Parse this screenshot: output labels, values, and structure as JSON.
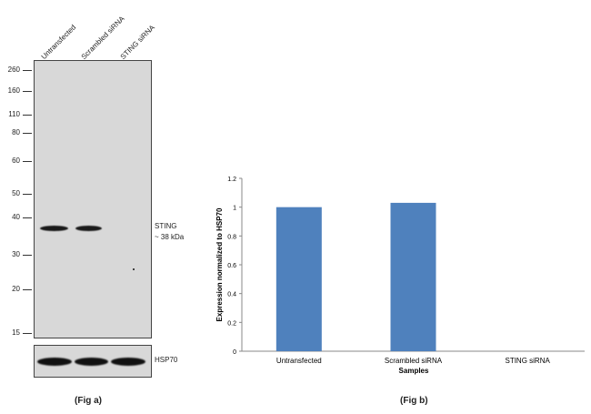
{
  "fig_a": {
    "lanes": [
      "Untransfected",
      "Scrambled siRNA",
      "STING siRNA"
    ],
    "markers": [
      "260",
      "160",
      "110",
      "80",
      "60",
      "50",
      "40",
      "30",
      "20",
      "15"
    ],
    "target_label": "STING",
    "target_size": "~ 38 kDa",
    "loading_label": "HSP70",
    "caption": "(Fig a)"
  },
  "fig_b": {
    "caption": "(Fig b)"
  },
  "chart_data": {
    "type": "bar",
    "categories": [
      "Untransfected",
      "Scrambled siRNA",
      "STING siRNA"
    ],
    "values": [
      1.0,
      1.03,
      0.0
    ],
    "xlabel": "Samples",
    "ylabel": "Expression  normalized to HSP70",
    "ylim": [
      0,
      1.2
    ],
    "yticks": [
      "0",
      "0.2",
      "0.4",
      "0.6",
      "0.8",
      "1",
      "1.2"
    ],
    "bar_color": "#4f81bd",
    "grid": false
  }
}
